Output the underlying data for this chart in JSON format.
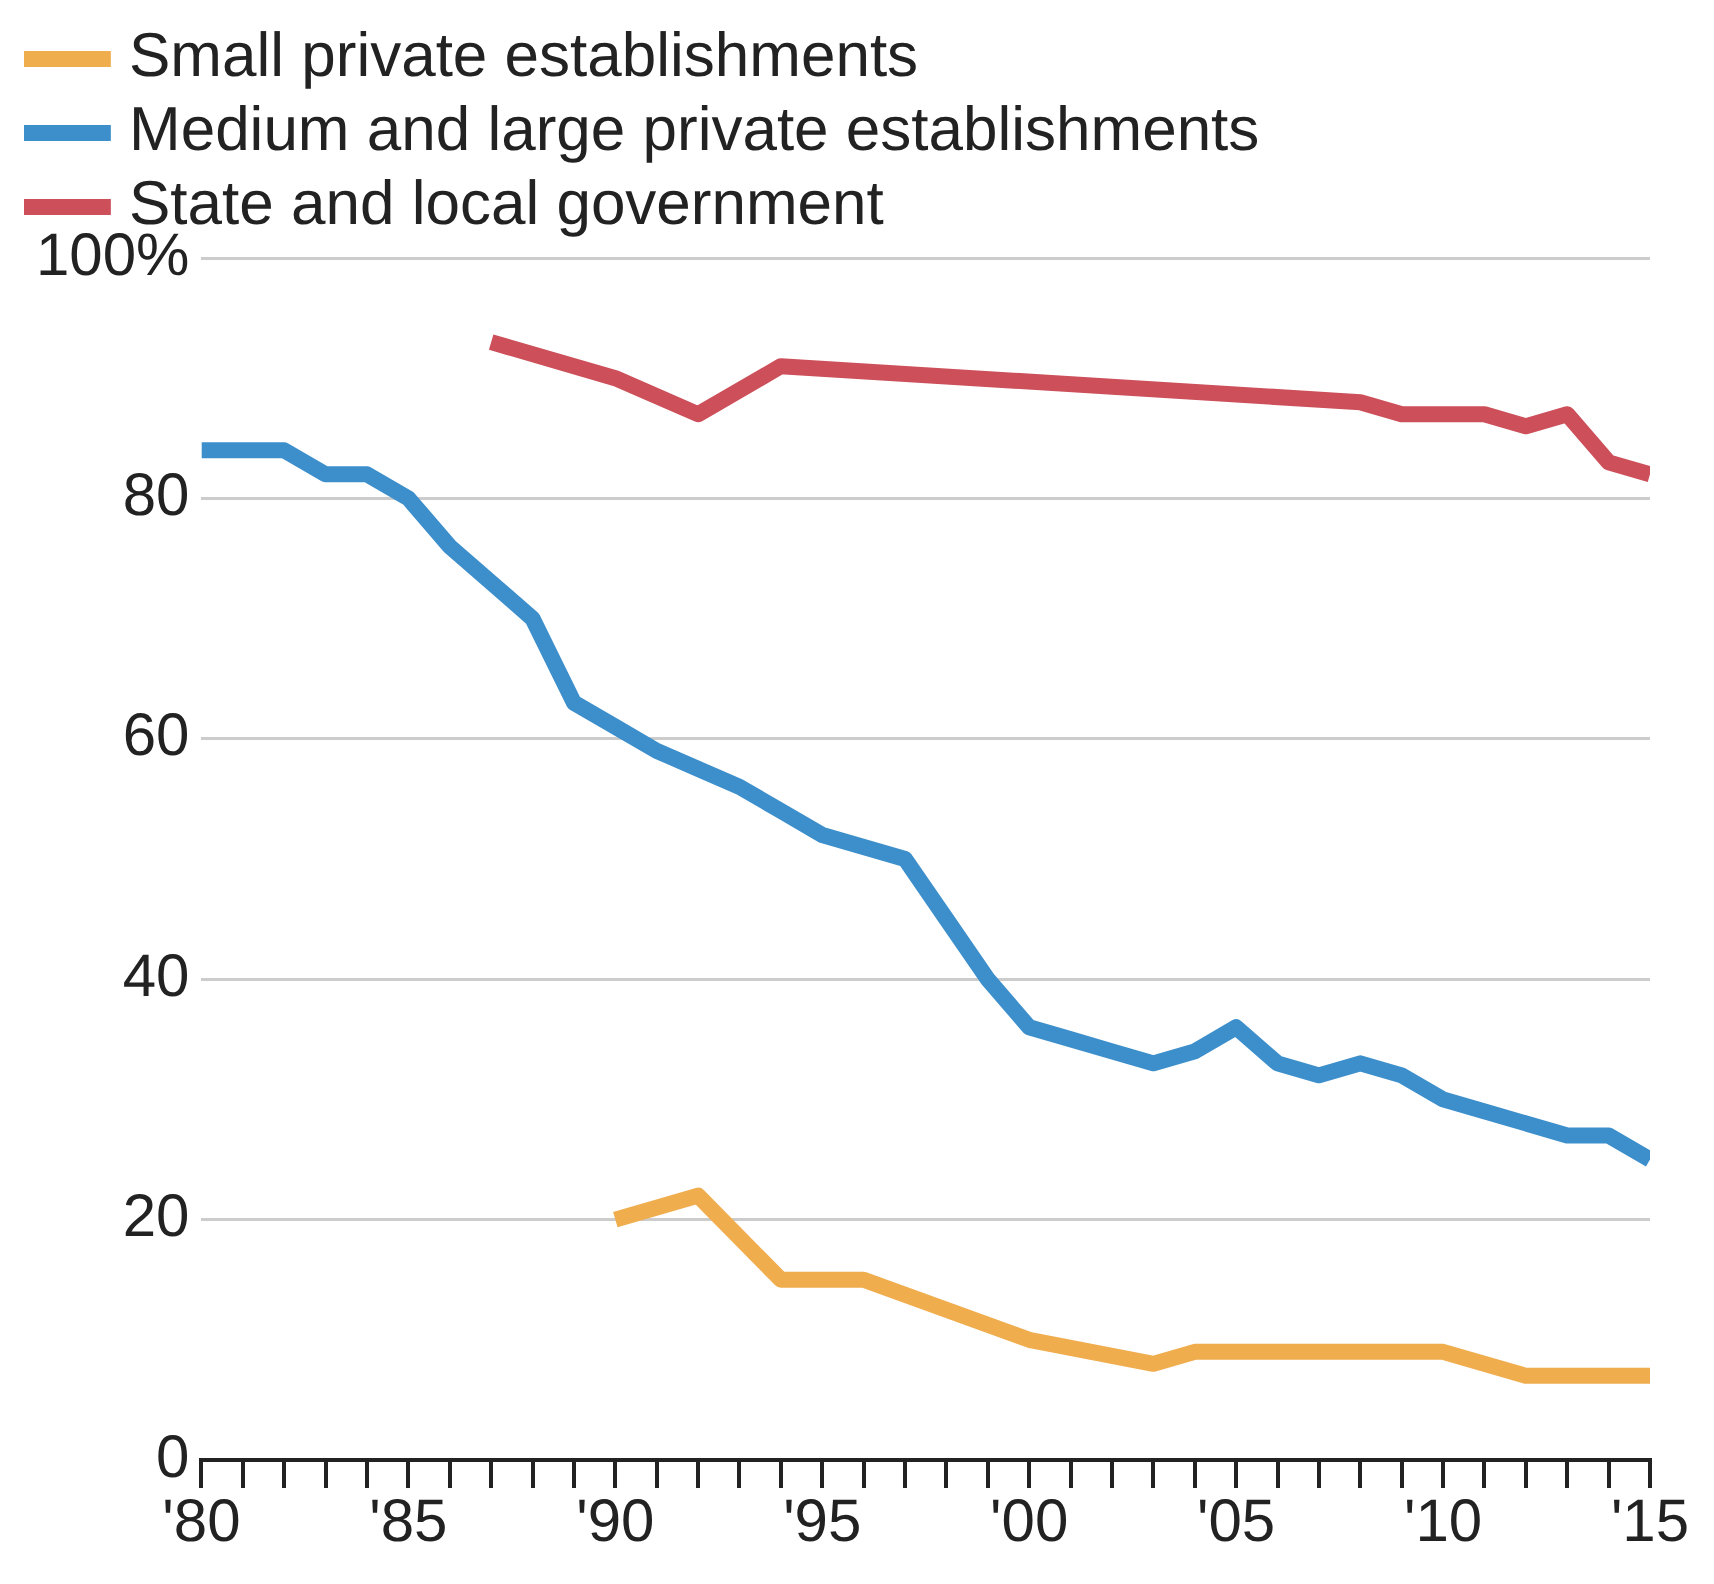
{
  "chart_data": {
    "type": "line",
    "x": [
      1980,
      1981,
      1982,
      1983,
      1984,
      1985,
      1986,
      1987,
      1988,
      1989,
      1990,
      1991,
      1992,
      1993,
      1994,
      1995,
      1996,
      1997,
      1998,
      1999,
      2000,
      2001,
      2002,
      2003,
      2004,
      2005,
      2006,
      2007,
      2008,
      2009,
      2010,
      2011,
      2012,
      2013,
      2014,
      2015
    ],
    "series": [
      {
        "name": "Small private establishments",
        "color": "#f0ad4e",
        "x": [
          1990,
          1992,
          1994,
          1996,
          2000,
          2003,
          2004,
          2010,
          2012,
          2015
        ],
        "values": [
          20,
          22,
          15,
          15,
          10,
          8,
          9,
          9,
          7,
          7
        ]
      },
      {
        "name": "Medium and large private establishments",
        "color": "#3d8fcc",
        "values": [
          84,
          84,
          84,
          82,
          82,
          80,
          76,
          73,
          70,
          63,
          61,
          59,
          57.5,
          56,
          54,
          52,
          51,
          50,
          45,
          40,
          36,
          35,
          34,
          33,
          34,
          36,
          33,
          32,
          33,
          32,
          30,
          29,
          28,
          27,
          27,
          25
        ]
      },
      {
        "name": "State and local government",
        "color": "#cc4f5a",
        "x": [
          1987,
          1990,
          1992,
          1994,
          2008,
          2009,
          2011,
          2012,
          2013,
          2014,
          2015
        ],
        "values": [
          93,
          90,
          87,
          91,
          88,
          87,
          87,
          86,
          87,
          83,
          82
        ]
      }
    ],
    "xlim": [
      1980,
      2015
    ],
    "xticks": [
      {
        "value": 1980,
        "label": "'80"
      },
      {
        "value": 1981,
        "label": null
      },
      {
        "value": 1982,
        "label": null
      },
      {
        "value": 1983,
        "label": null
      },
      {
        "value": 1984,
        "label": null
      },
      {
        "value": 1985,
        "label": "'85"
      },
      {
        "value": 1986,
        "label": null
      },
      {
        "value": 1987,
        "label": null
      },
      {
        "value": 1988,
        "label": null
      },
      {
        "value": 1989,
        "label": null
      },
      {
        "value": 1990,
        "label": "'90"
      },
      {
        "value": 1991,
        "label": null
      },
      {
        "value": 1992,
        "label": null
      },
      {
        "value": 1993,
        "label": null
      },
      {
        "value": 1994,
        "label": null
      },
      {
        "value": 1995,
        "label": "'95"
      },
      {
        "value": 1996,
        "label": null
      },
      {
        "value": 1997,
        "label": null
      },
      {
        "value": 1998,
        "label": null
      },
      {
        "value": 1999,
        "label": null
      },
      {
        "value": 2000,
        "label": "'00"
      },
      {
        "value": 2001,
        "label": null
      },
      {
        "value": 2002,
        "label": null
      },
      {
        "value": 2003,
        "label": null
      },
      {
        "value": 2004,
        "label": null
      },
      {
        "value": 2005,
        "label": "'05"
      },
      {
        "value": 2006,
        "label": null
      },
      {
        "value": 2007,
        "label": null
      },
      {
        "value": 2008,
        "label": null
      },
      {
        "value": 2009,
        "label": null
      },
      {
        "value": 2010,
        "label": "'10"
      },
      {
        "value": 2011,
        "label": null
      },
      {
        "value": 2012,
        "label": null
      },
      {
        "value": 2013,
        "label": null
      },
      {
        "value": 2014,
        "label": null
      },
      {
        "value": 2015,
        "label": "'15"
      }
    ],
    "ylim": [
      0,
      100
    ],
    "yticks": [
      0,
      20,
      40,
      60,
      80,
      {
        "value": 100,
        "label": "100%"
      }
    ],
    "grid": "y",
    "legend": "top left",
    "marker": "none",
    "line_style": "solid"
  }
}
